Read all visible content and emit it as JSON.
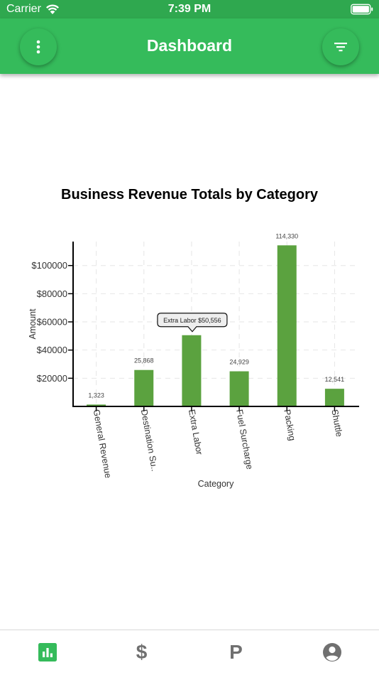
{
  "status_bar": {
    "carrier": "Carrier",
    "time": "7:39 PM"
  },
  "app_bar": {
    "title": "Dashboard",
    "menu_icon": "more-vertical-icon",
    "filter_icon": "filter-icon"
  },
  "tabs": [
    {
      "name": "dashboard",
      "icon": "bar-chart-icon",
      "glyph": "",
      "active": true
    },
    {
      "name": "revenue",
      "icon": "dollar-icon",
      "glyph": "$",
      "active": false
    },
    {
      "name": "parking",
      "icon": "p-icon",
      "glyph": "P",
      "active": false
    },
    {
      "name": "profile",
      "icon": "account-circle-icon",
      "glyph": "",
      "active": false
    }
  ],
  "colors": {
    "primary": "#35bb5b",
    "status": "#2fa84f",
    "bar": "#5ba23f",
    "tab_active": "#35bb5b",
    "tab_inactive": "#707070"
  },
  "chart_data": {
    "type": "bar",
    "title": "Business Revenue Totals by Category",
    "xlabel": "Category",
    "ylabel": "Amount",
    "categories": [
      "General Revenue",
      "Destination Su..",
      "Extra Labor",
      "Fuel Surcharge",
      "Packing",
      "Shuttle"
    ],
    "values": [
      1323,
      25868,
      50556,
      24929,
      114330,
      12541
    ],
    "value_labels": [
      "1,323",
      "25,868",
      "",
      "24,929",
      "114,330",
      "12,541"
    ],
    "y_ticks": [
      20000,
      40000,
      60000,
      80000,
      100000
    ],
    "y_tick_labels": [
      "$20000",
      "$40000",
      "$60000",
      "$80000",
      "$100000"
    ],
    "ylim": [
      0,
      117000
    ],
    "grid": true,
    "tooltip": {
      "category": "Extra Labor",
      "text": "Extra Labor $50,556"
    }
  }
}
